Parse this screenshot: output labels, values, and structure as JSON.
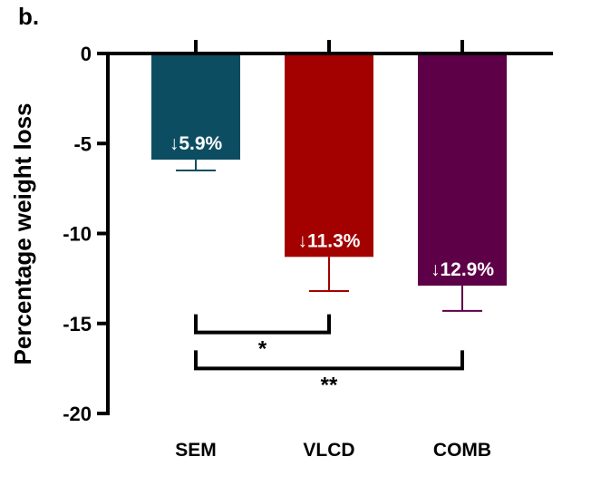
{
  "panel_label": "b.",
  "chart_data": {
    "type": "bar",
    "ylabel": "Percentage weight loss",
    "xlabel": "",
    "ylim": [
      -20,
      0
    ],
    "yticks": [
      "0",
      "-5",
      "-10",
      "-15",
      "-20"
    ],
    "ytick_values": [
      0,
      -5,
      -10,
      -15,
      -20
    ],
    "categories": [
      "SEM",
      "VLCD",
      "COMB"
    ],
    "values": [
      -5.9,
      -11.3,
      -12.9
    ],
    "error_lower": [
      -6.5,
      -13.2,
      -14.3
    ],
    "bar_labels": [
      "↓5.9%",
      "↓11.3%",
      "↓12.9%"
    ],
    "colors": [
      "#0d4d62",
      "#a30000",
      "#5e0047"
    ],
    "significance": [
      {
        "from": "SEM",
        "to": "VLCD",
        "level": -15.5,
        "label": "*"
      },
      {
        "from": "SEM",
        "to": "COMB",
        "level": -17.5,
        "label": "**"
      }
    ],
    "grid": false,
    "legend": "none"
  }
}
